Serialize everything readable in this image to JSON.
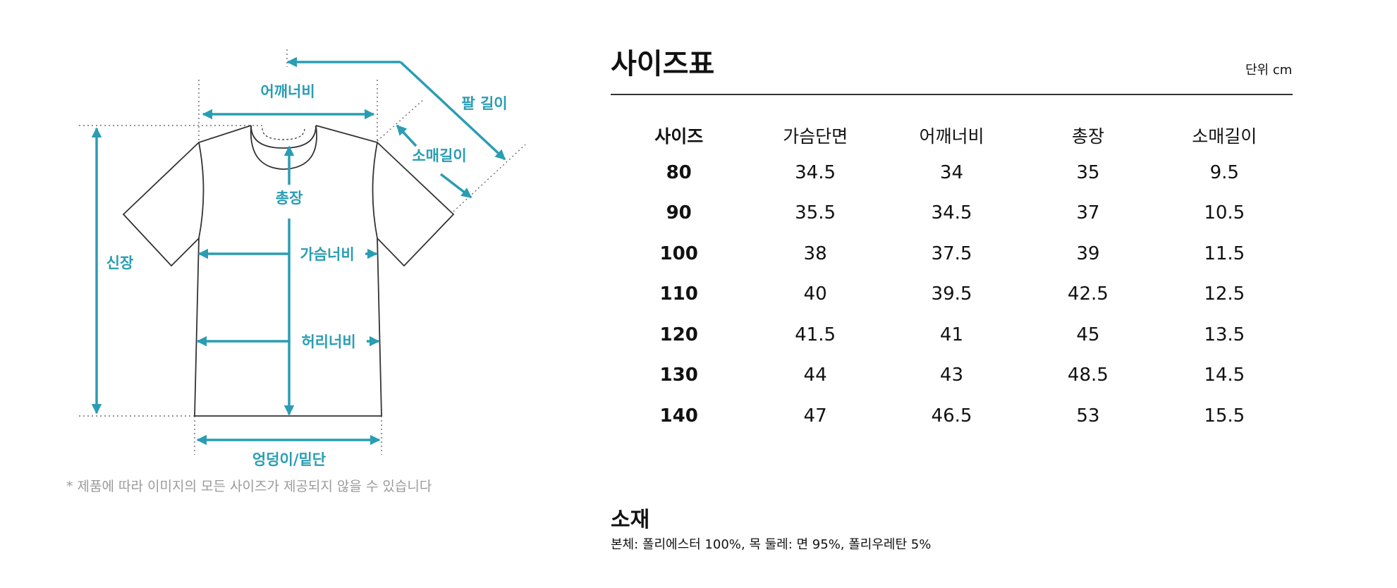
{
  "diagram": {
    "labels": {
      "shoulder_width": "어깨너비",
      "arm_length": "팔 길이",
      "sleeve_length": "소매길이",
      "total_length": "총장",
      "chest_width": "가슴너비",
      "height": "신장",
      "waist_width": "허리너비",
      "hip_hem": "엉덩이/밑단"
    },
    "note": "* 제품에 따라 이미지의 모든 사이즈가 제공되지 않을 수 있습니다",
    "accent_color": "#2a9db3"
  },
  "size_chart": {
    "title": "사이즈표",
    "unit": "단위 cm",
    "headers": [
      "사이즈",
      "가슴단면",
      "어깨너비",
      "총장",
      "소매길이"
    ],
    "rows": [
      [
        "80",
        "34.5",
        "34",
        "35",
        "9.5"
      ],
      [
        "90",
        "35.5",
        "34.5",
        "37",
        "10.5"
      ],
      [
        "100",
        "38",
        "37.5",
        "39",
        "11.5"
      ],
      [
        "110",
        "40",
        "39.5",
        "42.5",
        "12.5"
      ],
      [
        "120",
        "41.5",
        "41",
        "45",
        "13.5"
      ],
      [
        "130",
        "44",
        "43",
        "48.5",
        "14.5"
      ],
      [
        "140",
        "47",
        "46.5",
        "53",
        "15.5"
      ]
    ]
  },
  "material": {
    "title": "소재",
    "text": "본체: 폴리에스터 100%, 목 둘레: 면 95%, 폴리우레탄 5%"
  }
}
